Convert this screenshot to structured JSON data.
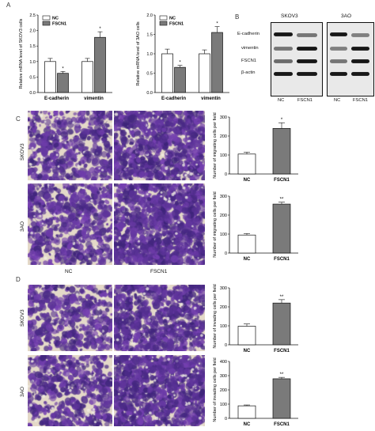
{
  "panels": {
    "A": "A",
    "B": "B",
    "C": "C",
    "D": "D"
  },
  "bar_series": {
    "nc": "NC",
    "fscn1": "FSCN1"
  },
  "colors": {
    "nc_bar": "#ffffff",
    "fscn1_bar": "#7a7a7a",
    "stain": "#4a2f8c",
    "background_stain": "#e4d9c8"
  },
  "chart_data": [
    {
      "id": "skov3-mrna",
      "type": "bar",
      "ylabel": "Relative mRNA level of SKOV3 cells",
      "categories": [
        "E-cadherin",
        "vimentin"
      ],
      "series": [
        {
          "name": "NC",
          "values": [
            1.0,
            1.0
          ],
          "errors": [
            0.1,
            0.1
          ]
        },
        {
          "name": "FSCN1",
          "values": [
            0.62,
            1.78
          ],
          "errors": [
            0.06,
            0.18
          ]
        }
      ],
      "ylim": [
        0,
        2.5
      ],
      "yticks": [
        "0.0",
        "0.5",
        "1.0",
        "1.5",
        "2.0",
        "2.5"
      ],
      "annotations": [
        "*",
        "*"
      ],
      "legend": "top-left"
    },
    {
      "id": "3ao-mrna",
      "type": "bar",
      "ylabel": "Relative mRNA level of 3AO cells",
      "categories": [
        "E-cadherin",
        "vimentin"
      ],
      "series": [
        {
          "name": "NC",
          "values": [
            1.0,
            1.0
          ],
          "errors": [
            0.12,
            0.1
          ]
        },
        {
          "name": "FSCN1",
          "values": [
            0.65,
            1.55
          ],
          "errors": [
            0.05,
            0.15
          ]
        }
      ],
      "ylim": [
        0,
        2.0
      ],
      "yticks": [
        "0.0",
        "0.5",
        "1.0",
        "1.5",
        "2.0"
      ],
      "annotations": [
        "*",
        "*"
      ],
      "legend": "top-left"
    },
    {
      "id": "skov3-migrating",
      "type": "bar",
      "ylabel": "Number of migrating cells per field",
      "categories": [
        "NC",
        "FSCN1"
      ],
      "values": [
        105,
        240
      ],
      "errors": [
        10,
        30
      ],
      "ylim": [
        0,
        300
      ],
      "yticks": [
        "0",
        "100",
        "200",
        "300"
      ],
      "annotations": [
        "",
        "*"
      ],
      "fills": [
        "#ffffff",
        "#7a7a7a"
      ]
    },
    {
      "id": "3ao-migrating",
      "type": "bar",
      "ylabel": "Number of migrating cells per field",
      "categories": [
        "NC",
        "FSCN1"
      ],
      "values": [
        95,
        258
      ],
      "errors": [
        8,
        10
      ],
      "ylim": [
        0,
        300
      ],
      "yticks": [
        "0",
        "100",
        "200",
        "300"
      ],
      "annotations": [
        "",
        "**"
      ],
      "fills": [
        "#ffffff",
        "#7a7a7a"
      ]
    },
    {
      "id": "skov3-invading",
      "type": "bar",
      "ylabel": "Number of invading cells per field",
      "categories": [
        "NC",
        "FSCN1"
      ],
      "values": [
        98,
        220
      ],
      "errors": [
        12,
        18
      ],
      "ylim": [
        0,
        300
      ],
      "yticks": [
        "0",
        "100",
        "200",
        "300"
      ],
      "annotations": [
        "",
        "**"
      ],
      "fills": [
        "#ffffff",
        "#7a7a7a"
      ]
    },
    {
      "id": "3ao-invading",
      "type": "bar",
      "ylabel": "Number of invading cells per field",
      "categories": [
        "NC",
        "FSCN1"
      ],
      "values": [
        88,
        278
      ],
      "errors": [
        6,
        10
      ],
      "ylim": [
        0,
        400
      ],
      "yticks": [
        "0",
        "100",
        "200",
        "300",
        "400"
      ],
      "annotations": [
        "",
        "**"
      ],
      "fills": [
        "#ffffff",
        "#7a7a7a"
      ]
    }
  ],
  "western_blot": {
    "cell_lines": [
      "SKOV3",
      "3AO"
    ],
    "proteins": [
      "E-cadherin",
      "vimentin",
      "FSCN1",
      "β-actin"
    ],
    "lanes": [
      "NC",
      "FSCN1",
      "NC",
      "FSCN1"
    ]
  },
  "micrographs": {
    "row_labels": [
      "SKOV3",
      "3AO"
    ],
    "col_labels": [
      "NC",
      "FSCN1"
    ]
  }
}
